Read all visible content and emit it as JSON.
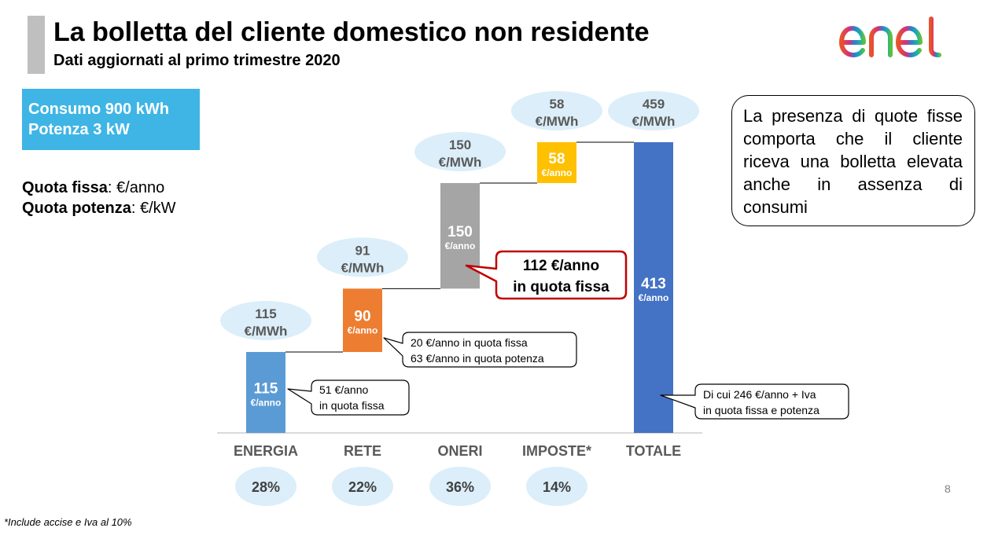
{
  "header": {
    "title": "La bolletta del cliente domestico non residente",
    "subtitle": "Dati aggiornati al primo trimestre 2020"
  },
  "logo": {
    "text": "enel"
  },
  "consumption_box": {
    "line1": "Consumo 900 kWh",
    "line2": "Potenza 3 kW"
  },
  "legend": {
    "quota_fissa_label": "Quota fissa",
    "quota_fissa_unit": ": €/anno",
    "quota_potenza_label": "Quota potenza",
    "quota_potenza_unit": ": €/kW"
  },
  "info_box": {
    "text": "La presenza di quote fisse comporta che il cliente riceva una bolletta elevata anche in assenza di consumi"
  },
  "chart_data": {
    "type": "bar",
    "subtype": "waterfall",
    "categories": [
      "ENERGIA",
      "RETE",
      "ONERI",
      "IMPOSTE*",
      "TOTALE"
    ],
    "values": [
      115,
      90,
      150,
      58,
      413
    ],
    "value_unit": "€/anno",
    "mwh_labels": [
      {
        "value": "115",
        "unit": "€/MWh"
      },
      {
        "value": "91",
        "unit": "€/MWh"
      },
      {
        "value": "150",
        "unit": "€/MWh"
      },
      {
        "value": "58",
        "unit": "€/MWh"
      },
      {
        "value": "459",
        "unit": "€/MWh"
      }
    ],
    "shares": [
      "28%",
      "22%",
      "36%",
      "14%"
    ],
    "colors": [
      "#5b9bd5",
      "#ed7d31",
      "#a5a5a5",
      "#ffc000",
      "#4472c4"
    ],
    "ylim": [
      0,
      413
    ],
    "callouts": [
      {
        "lines": [
          "51 €/anno",
          "in quota fissa"
        ]
      },
      {
        "lines": [
          "20 €/anno in quota fissa",
          "63 €/anno in quota potenza"
        ]
      },
      {
        "lines": [
          "112 €/anno",
          "in quota fissa"
        ],
        "accent": "#c00000"
      },
      {
        "lines": [
          "Di cui 246 €/anno + Iva",
          "in quota fissa e potenza"
        ]
      }
    ]
  },
  "footnote": "*Include accise e Iva al 10%",
  "page_number": "8"
}
